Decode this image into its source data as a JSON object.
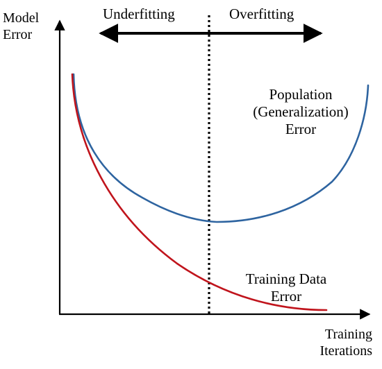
{
  "diagram": {
    "y_axis_label": {
      "line1": "Model",
      "line2": "Error"
    },
    "x_axis_label": {
      "line1": "Training",
      "line2": "Iterations"
    },
    "regions": {
      "left": "Underfitting",
      "right": "Overfitting"
    },
    "population_curve": {
      "line1": "Population",
      "line2": "(Generalization)",
      "line3": "Error"
    },
    "training_curve": {
      "line1": "Training Data",
      "line2": "Error"
    },
    "colors": {
      "population": "#2e64a0",
      "training": "#c0141c",
      "axis": "#000000",
      "divider": "#000000"
    }
  }
}
